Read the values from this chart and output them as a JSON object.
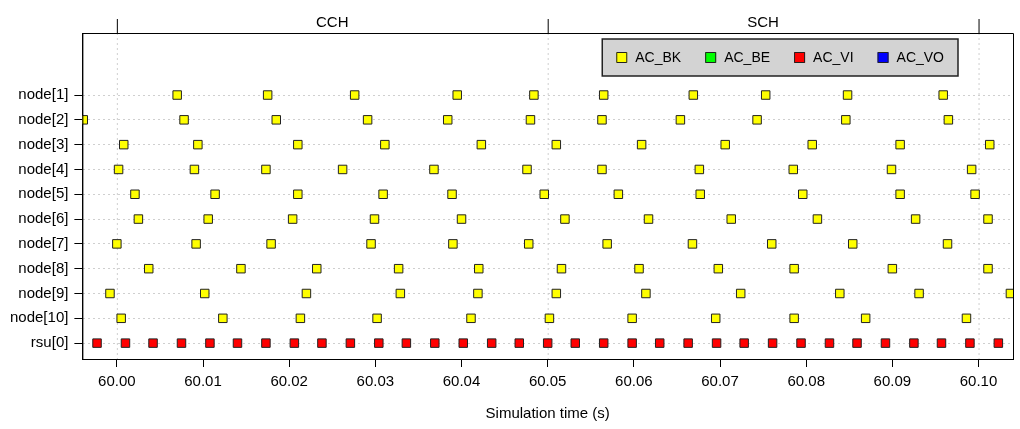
{
  "chart_data": {
    "type": "scatter",
    "orientation": "horizontal",
    "xlabel": "Simulation time (s)",
    "categories": [
      "node[1]",
      "node[2]",
      "node[3]",
      "node[4]",
      "node[5]",
      "node[6]",
      "node[7]",
      "node[8]",
      "node[9]",
      "node[10]",
      "rsu[0]"
    ],
    "xlim": [
      59.996,
      60.104
    ],
    "xticks": [
      {
        "value": 60,
        "label": "60.00"
      },
      {
        "value": 60.01,
        "label": "60.01"
      },
      {
        "value": 60.02,
        "label": "60.02"
      },
      {
        "value": 60.03,
        "label": "60.03"
      },
      {
        "value": 60.04,
        "label": "60.04"
      },
      {
        "value": 60.05,
        "label": "60.05"
      },
      {
        "value": 60.06,
        "label": "60.06"
      },
      {
        "value": 60.07,
        "label": "60.07"
      },
      {
        "value": 60.08,
        "label": "60.08"
      },
      {
        "value": 60.09,
        "label": "60.09"
      },
      {
        "value": 60.1,
        "label": "60.10"
      }
    ],
    "ref_lines": [
      {
        "axis": "x",
        "value": 60,
        "color": "#cfcfcf",
        "line_style": "dotted"
      },
      {
        "axis": "x",
        "value": 60.05,
        "color": "#cfcfcf",
        "line_style": "dotted"
      },
      {
        "axis": "x",
        "value": 60.1,
        "color": "#cfcfcf",
        "line_style": "dotted"
      }
    ],
    "annotations": [
      "CCH",
      "SCH"
    ],
    "grid": "y",
    "legend": "top right",
    "marker": "square",
    "series": [
      {
        "name": "AC_BK",
        "color": "#ffff00",
        "values": [
          60.007,
          60.0175,
          60.0276,
          60.0395,
          60.0484,
          60.0565,
          60.0669,
          60.0753,
          60.0848,
          60.0959,
          59.9961,
          60.0078,
          60.0185,
          60.0291,
          60.0384,
          60.048,
          60.0563,
          60.0654,
          60.0743,
          60.0846,
          60.0965,
          60.0008,
          60.0094,
          60.021,
          60.0311,
          60.0423,
          60.051,
          60.0609,
          60.0706,
          60.0807,
          60.0909,
          60.1013,
          60.0002,
          60.009,
          60.0173,
          60.0262,
          60.0368,
          60.0476,
          60.0563,
          60.0676,
          60.0785,
          60.0899,
          60.0992,
          60.0021,
          60.0114,
          60.021,
          60.0309,
          60.0389,
          60.0496,
          60.0582,
          60.0677,
          60.0796,
          60.0909,
          60.0996,
          60.0025,
          60.0106,
          60.0204,
          60.0299,
          60.04,
          60.052,
          60.0617,
          60.0713,
          60.0813,
          60.0927,
          60.1011,
          60.0,
          60.0092,
          60.0179,
          60.0295,
          60.039,
          60.0478,
          60.0569,
          60.0668,
          60.076,
          60.0854,
          60.0964,
          60.0037,
          60.0144,
          60.0232,
          60.0327,
          60.042,
          60.0516,
          60.0606,
          60.0698,
          60.0786,
          60.09,
          60.1011,
          59.9992,
          60.0102,
          60.022,
          60.0329,
          60.0419,
          60.051,
          60.0614,
          60.0724,
          60.0839,
          60.0931,
          60.1037,
          60.0005,
          60.0123,
          60.0213,
          60.0302,
          60.0411,
          60.0502,
          60.0598,
          60.0695,
          60.0786,
          60.0869,
          60.0986
        ],
        "x": [
          "node[1]",
          "node[1]",
          "node[1]",
          "node[1]",
          "node[1]",
          "node[1]",
          "node[1]",
          "node[1]",
          "node[1]",
          "node[1]",
          "node[2]",
          "node[2]",
          "node[2]",
          "node[2]",
          "node[2]",
          "node[2]",
          "node[2]",
          "node[2]",
          "node[2]",
          "node[2]",
          "node[2]",
          "node[3]",
          "node[3]",
          "node[3]",
          "node[3]",
          "node[3]",
          "node[3]",
          "node[3]",
          "node[3]",
          "node[3]",
          "node[3]",
          "node[3]",
          "node[4]",
          "node[4]",
          "node[4]",
          "node[4]",
          "node[4]",
          "node[4]",
          "node[4]",
          "node[4]",
          "node[4]",
          "node[4]",
          "node[4]",
          "node[5]",
          "node[5]",
          "node[5]",
          "node[5]",
          "node[5]",
          "node[5]",
          "node[5]",
          "node[5]",
          "node[5]",
          "node[5]",
          "node[5]",
          "node[6]",
          "node[6]",
          "node[6]",
          "node[6]",
          "node[6]",
          "node[6]",
          "node[6]",
          "node[6]",
          "node[6]",
          "node[6]",
          "node[6]",
          "node[7]",
          "node[7]",
          "node[7]",
          "node[7]",
          "node[7]",
          "node[7]",
          "node[7]",
          "node[7]",
          "node[7]",
          "node[7]",
          "node[7]",
          "node[8]",
          "node[8]",
          "node[8]",
          "node[8]",
          "node[8]",
          "node[8]",
          "node[8]",
          "node[8]",
          "node[8]",
          "node[8]",
          "node[8]",
          "node[9]",
          "node[9]",
          "node[9]",
          "node[9]",
          "node[9]",
          "node[9]",
          "node[9]",
          "node[9]",
          "node[9]",
          "node[9]",
          "node[9]",
          "node[10]",
          "node[10]",
          "node[10]",
          "node[10]",
          "node[10]",
          "node[10]",
          "node[10]",
          "node[10]",
          "node[10]",
          "node[10]",
          "node[10]"
        ]
      },
      {
        "name": "AC_BE",
        "color": "#00ff00",
        "x": [
          "node[1]",
          "node[2]",
          "node[3]",
          "node[4]",
          "node[5]",
          "node[6]",
          "node[7]",
          "node[8]",
          "node[9]",
          "node[10]",
          "rsu[0]"
        ],
        "values": [
          null,
          null,
          null,
          null,
          null,
          null,
          null,
          null,
          null,
          null,
          null
        ]
      },
      {
        "name": "AC_VI",
        "color": "#ff0000",
        "values": [
          59.9977,
          60.001,
          60.0042,
          60.0075,
          60.0108,
          60.014,
          60.0173,
          60.0206,
          60.0238,
          60.0271,
          60.0304,
          60.0336,
          60.0369,
          60.0402,
          60.0435,
          60.0467,
          60.05,
          60.0532,
          60.0565,
          60.0598,
          60.063,
          60.0663,
          60.0696,
          60.0728,
          60.0761,
          60.0794,
          60.0827,
          60.0859,
          60.0892,
          60.0925,
          60.0957,
          60.099,
          60.1023
        ],
        "x": [
          "rsu[0]",
          "rsu[0]",
          "rsu[0]",
          "rsu[0]",
          "rsu[0]",
          "rsu[0]",
          "rsu[0]",
          "rsu[0]",
          "rsu[0]",
          "rsu[0]",
          "rsu[0]",
          "rsu[0]",
          "rsu[0]",
          "rsu[0]",
          "rsu[0]",
          "rsu[0]",
          "rsu[0]",
          "rsu[0]",
          "rsu[0]",
          "rsu[0]",
          "rsu[0]",
          "rsu[0]",
          "rsu[0]",
          "rsu[0]",
          "rsu[0]",
          "rsu[0]",
          "rsu[0]",
          "rsu[0]",
          "rsu[0]",
          "rsu[0]",
          "rsu[0]",
          "rsu[0]",
          "rsu[0]"
        ]
      },
      {
        "name": "AC_VO",
        "color": "#0000ff",
        "x": [
          "node[1]",
          "node[2]",
          "node[3]",
          "node[4]",
          "node[5]",
          "node[6]",
          "node[7]",
          "node[8]",
          "node[9]",
          "node[10]",
          "rsu[0]"
        ],
        "values": [
          null,
          null,
          null,
          null,
          null,
          null,
          null,
          null,
          null,
          null,
          null
        ]
      }
    ]
  }
}
